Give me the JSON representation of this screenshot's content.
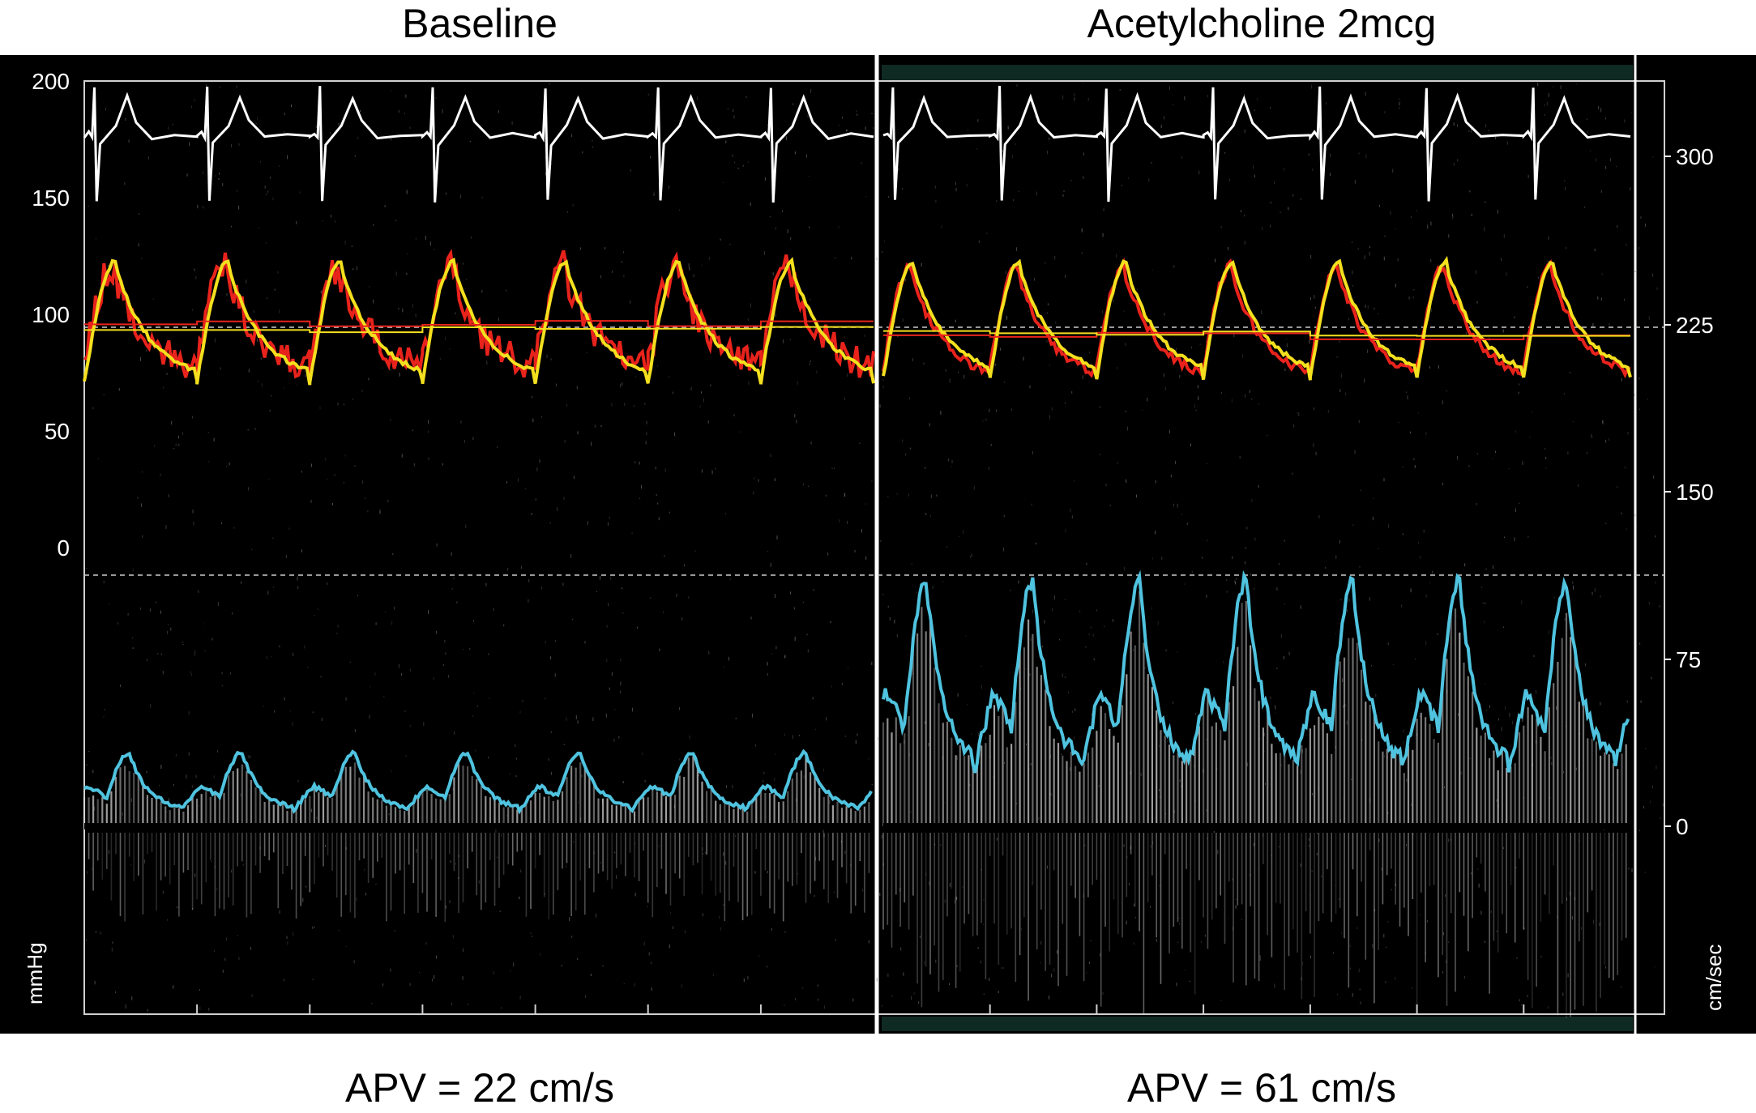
{
  "chart_data": {
    "type": "line",
    "panels": [
      {
        "title": "Baseline",
        "caption": "APV = 22 cm/s",
        "apv_cm_s": 22,
        "beats": 7,
        "aortic_pressure_mmHg": {
          "systolic": 120,
          "diastolic": 72,
          "mean": 95
        },
        "distal_pressure_mmHg": {
          "systolic": 122,
          "diastolic": 70,
          "mean": 93
        },
        "flow_velocity_cm_s": {
          "peak": 33,
          "trough": 7
        }
      },
      {
        "title": "Acetylcholine 2mcg",
        "caption": "APV = 61 cm/s",
        "apv_cm_s": 61,
        "beats": 7,
        "aortic_pressure_mmHg": {
          "systolic": 120,
          "diastolic": 70,
          "mean": 90
        },
        "distal_pressure_mmHg": {
          "systolic": 122,
          "diastolic": 72,
          "mean": 91
        },
        "flow_velocity_cm_s": {
          "peak": 110,
          "trough": 25
        }
      }
    ],
    "left_axis": {
      "unit": "mmHg",
      "ticks": [
        "200",
        "150",
        "100",
        "50",
        "0"
      ],
      "tick_values": [
        200,
        150,
        100,
        50,
        0
      ],
      "range": [
        0,
        200
      ]
    },
    "right_axis": {
      "unit": "cm/sec",
      "ticks": [
        "300",
        "225",
        "150",
        "75",
        "0"
      ],
      "tick_values": [
        300,
        225,
        150,
        75,
        0
      ],
      "range": [
        0,
        300
      ]
    },
    "series_colors": {
      "ecg": "#ffffff",
      "aortic_pressure": "#e8231c",
      "distal_pressure": "#f4e01e",
      "flow_envelope": "#4fc3df",
      "spectral": "#d8d8d8"
    }
  }
}
